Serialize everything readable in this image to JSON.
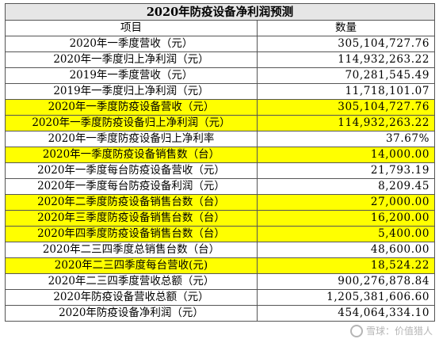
{
  "table": {
    "title": "2020年防疫设备净利润预测",
    "header": {
      "item": "项目",
      "value": "数量"
    },
    "rows": [
      {
        "label": "2020年一季度营收（元）",
        "value": "305,104,727.76",
        "highlight": false
      },
      {
        "label": "2020年一季度归上净利润（元）",
        "value": "114,932,263.22",
        "highlight": false
      },
      {
        "label": "2019年一季度营收（元）",
        "value": "70,281,545.49",
        "highlight": false
      },
      {
        "label": "2019年一季度归上净利润（元）",
        "value": "11,718,101.07",
        "highlight": false
      },
      {
        "label": "2020年一季度防疫设备营收（元）",
        "value": "305,104,727.76",
        "highlight": true
      },
      {
        "label": "2020年一季度防疫设备归上净利润（元）",
        "value": "114,932,263.22",
        "highlight": true
      },
      {
        "label": "2020年一季度防疫设备归上净利率",
        "value": "37.67%",
        "highlight": false
      },
      {
        "label": "2020年一季度防疫设备销售数（台）",
        "value": "14,000.00",
        "highlight": true
      },
      {
        "label": "2020年一季度每台防疫设备营收（元）",
        "value": "21,793.19",
        "highlight": false
      },
      {
        "label": "2020年一季度每台防疫设备利润（元）",
        "value": "8,209.45",
        "highlight": false
      },
      {
        "label": "2020年二季度防疫设备销售台数（台）",
        "value": "27,000.00",
        "highlight": true
      },
      {
        "label": "2020年三季度防疫设备销售台数（台）",
        "value": "16,200.00",
        "highlight": true
      },
      {
        "label": "2020年四季度防疫设备销售台数（台）",
        "value": "5,400.00",
        "highlight": true
      },
      {
        "label": "2020年二三四季度总销售台数（台）",
        "value": "48,600.00",
        "highlight": false
      },
      {
        "label": "2020年二三四季度每台营收(元)",
        "value": "18,524.22",
        "highlight": true
      },
      {
        "label": "2020年二三四季度营收总额（元）",
        "value": "900,276,878.84",
        "highlight": false
      },
      {
        "label": "2020年防疫设备营收总额（元）",
        "value": "1,205,381,606.60",
        "highlight": false
      },
      {
        "label": "2020年防疫设备净利润（元）",
        "value": "454,064,334.10",
        "highlight": false
      }
    ]
  },
  "colors": {
    "highlight": "#ffff00",
    "title_bg": "#e6e6e6",
    "border": "#555555"
  },
  "watermark": {
    "text": "雪球：价值猎人",
    "icon": "snowball-logo-icon"
  }
}
